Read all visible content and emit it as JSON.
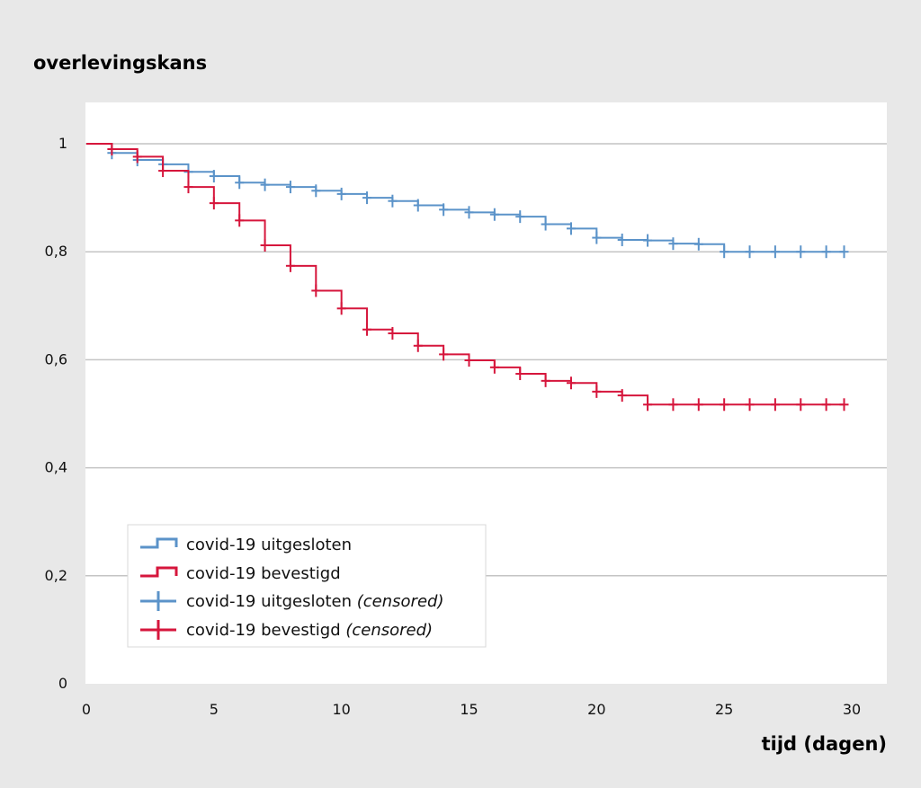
{
  "chart_data": {
    "type": "line",
    "style": "step",
    "title": "",
    "ylabel": "overlevingskans",
    "xlabel": "tijd (dagen)",
    "xlim": [
      0,
      30
    ],
    "ylim": [
      0,
      1.05
    ],
    "xticks": [
      0,
      5,
      10,
      15,
      20,
      25,
      30
    ],
    "xtick_labels": [
      "0",
      "5",
      "10",
      "15",
      "20",
      "25",
      "30"
    ],
    "yticks": [
      0,
      0.2,
      0.4,
      0.6,
      0.8,
      1
    ],
    "ytick_labels": [
      "0",
      "0,2",
      "0,4",
      "0,6",
      "0,8",
      "1"
    ],
    "grid": "horizontal",
    "legend_position": "bottom-left",
    "series": [
      {
        "name": "covid-19 uitgesloten",
        "censored_name": "covid-19 uitgesloten",
        "censored_suffix": "(censored)",
        "color": "#5b93c9",
        "steps": [
          [
            0,
            1.0
          ],
          [
            1,
            0.983
          ],
          [
            2,
            0.97
          ],
          [
            3,
            0.962
          ],
          [
            4,
            0.948
          ],
          [
            5,
            0.94
          ],
          [
            6,
            0.928
          ],
          [
            7,
            0.924
          ],
          [
            8,
            0.92
          ],
          [
            9,
            0.913
          ],
          [
            10,
            0.907
          ],
          [
            11,
            0.9
          ],
          [
            12,
            0.894
          ],
          [
            13,
            0.886
          ],
          [
            14,
            0.878
          ],
          [
            15,
            0.873
          ],
          [
            16,
            0.869
          ],
          [
            17,
            0.865
          ],
          [
            18,
            0.851
          ],
          [
            19,
            0.843
          ],
          [
            20,
            0.826
          ],
          [
            21,
            0.822
          ],
          [
            22,
            0.821
          ],
          [
            23,
            0.815
          ],
          [
            24,
            0.814
          ],
          [
            25,
            0.8
          ]
        ],
        "end_x": 29.7,
        "censored": [
          [
            1,
            0.983
          ],
          [
            2,
            0.97
          ],
          [
            3,
            0.962
          ],
          [
            4,
            0.948
          ],
          [
            5,
            0.94
          ],
          [
            6,
            0.928
          ],
          [
            7,
            0.924
          ],
          [
            8,
            0.92
          ],
          [
            9,
            0.913
          ],
          [
            10,
            0.907
          ],
          [
            11,
            0.9
          ],
          [
            12,
            0.894
          ],
          [
            13,
            0.886
          ],
          [
            14,
            0.878
          ],
          [
            15,
            0.873
          ],
          [
            16,
            0.869
          ],
          [
            17,
            0.865
          ],
          [
            18,
            0.851
          ],
          [
            19,
            0.843
          ],
          [
            20,
            0.826
          ],
          [
            21,
            0.822
          ],
          [
            22,
            0.821
          ],
          [
            23,
            0.815
          ],
          [
            24,
            0.814
          ],
          [
            25,
            0.8
          ],
          [
            26,
            0.8
          ],
          [
            27,
            0.8
          ],
          [
            28,
            0.8
          ],
          [
            29,
            0.8
          ],
          [
            29.7,
            0.8
          ]
        ]
      },
      {
        "name": "covid-19 bevestigd",
        "censored_name": "covid-19 bevestigd",
        "censored_suffix": "(censored)",
        "color": "#d6163c",
        "steps": [
          [
            0,
            1.0
          ],
          [
            1,
            0.99
          ],
          [
            2,
            0.976
          ],
          [
            3,
            0.95
          ],
          [
            4,
            0.92
          ],
          [
            5,
            0.89
          ],
          [
            6,
            0.858
          ],
          [
            7,
            0.812
          ],
          [
            8,
            0.774
          ],
          [
            9,
            0.728
          ],
          [
            10,
            0.695
          ],
          [
            11,
            0.656
          ],
          [
            12,
            0.649
          ],
          [
            13,
            0.626
          ],
          [
            14,
            0.61
          ],
          [
            15,
            0.599
          ],
          [
            16,
            0.586
          ],
          [
            17,
            0.574
          ],
          [
            18,
            0.561
          ],
          [
            19,
            0.557
          ],
          [
            20,
            0.541
          ],
          [
            21,
            0.534
          ],
          [
            22,
            0.517
          ]
        ],
        "end_x": 29.7,
        "censored": [
          [
            1,
            0.99
          ],
          [
            2,
            0.976
          ],
          [
            3,
            0.95
          ],
          [
            4,
            0.92
          ],
          [
            5,
            0.89
          ],
          [
            6,
            0.858
          ],
          [
            7,
            0.812
          ],
          [
            8,
            0.774
          ],
          [
            9,
            0.728
          ],
          [
            10,
            0.695
          ],
          [
            11,
            0.656
          ],
          [
            12,
            0.649
          ],
          [
            13,
            0.626
          ],
          [
            14,
            0.61
          ],
          [
            15,
            0.599
          ],
          [
            16,
            0.586
          ],
          [
            17,
            0.574
          ],
          [
            18,
            0.561
          ],
          [
            19,
            0.557
          ],
          [
            20,
            0.541
          ],
          [
            21,
            0.534
          ],
          [
            22,
            0.517
          ],
          [
            23,
            0.517
          ],
          [
            24,
            0.517
          ],
          [
            25,
            0.517
          ],
          [
            26,
            0.517
          ],
          [
            27,
            0.517
          ],
          [
            28,
            0.517
          ],
          [
            29,
            0.517
          ],
          [
            29.7,
            0.517
          ]
        ]
      }
    ]
  },
  "colors": {
    "page_background": "#e8e8e8",
    "plot_background": "#ffffff",
    "grid": "#c4c4c4"
  }
}
